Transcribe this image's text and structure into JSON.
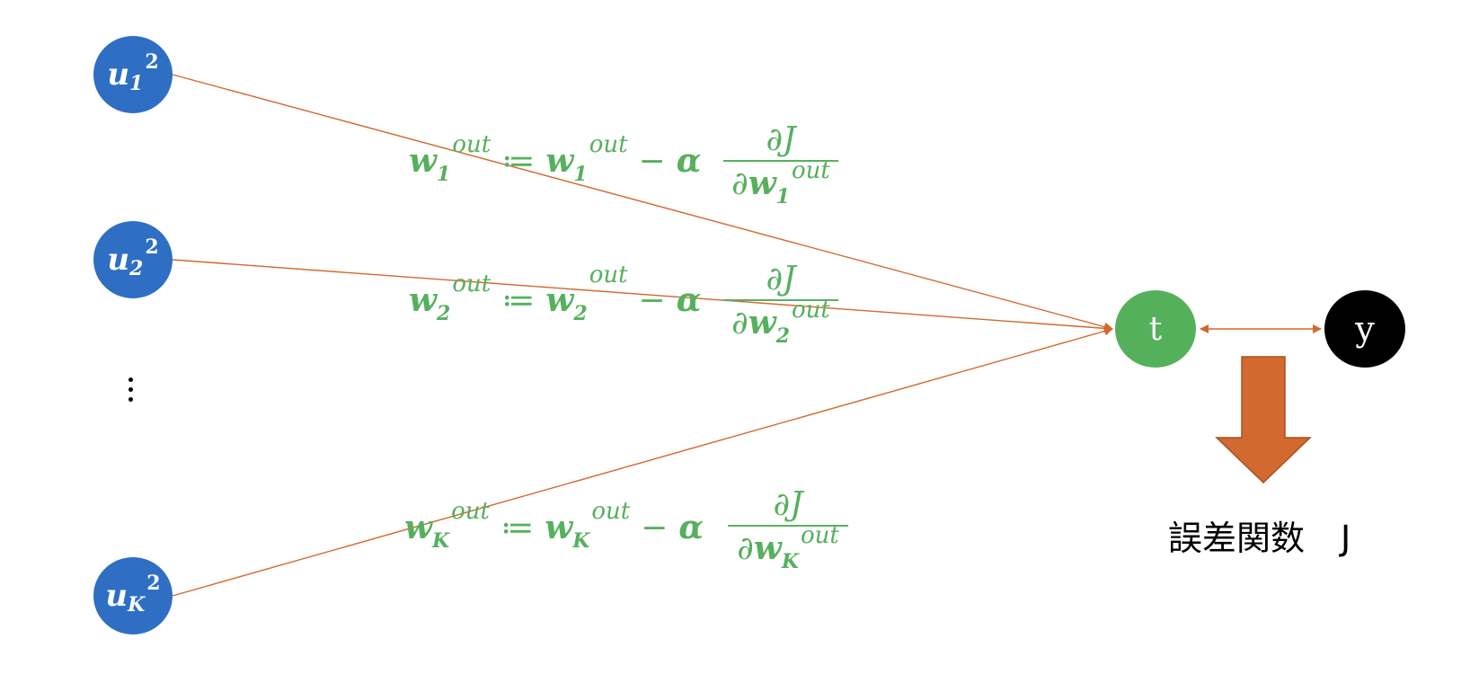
{
  "nodes": {
    "u1": {
      "base": "u",
      "sub": "1",
      "sup": "2"
    },
    "u2": {
      "base": "u",
      "sub": "2",
      "sup": "2"
    },
    "uK": {
      "base": "u",
      "sub": "K",
      "sup": "2"
    },
    "t": "t",
    "y": "y"
  },
  "equations": [
    {
      "w": "w",
      "sub": "1",
      "sup": "out",
      "assign": "≔",
      "minus": "−",
      "alpha": "α",
      "numerator": "∂J",
      "den_partial": "∂",
      "den_w": "w",
      "den_sub": "1",
      "den_sup": "out"
    },
    {
      "w": "w",
      "sub": "2",
      "sup": "out",
      "assign": "≔",
      "minus": "−",
      "alpha": "α",
      "numerator": "∂J",
      "den_partial": "∂",
      "den_w": "w",
      "den_sub": "2",
      "den_sup": "out"
    },
    {
      "w": "w",
      "sub": "K",
      "sup": "out",
      "assign": "≔",
      "minus": "−",
      "alpha": "α",
      "numerator": "∂J",
      "den_partial": "∂",
      "den_w": "w",
      "den_sub": "K",
      "den_sup": "out"
    }
  ],
  "error_function": {
    "label": "誤差関数",
    "symbol": "J"
  },
  "colors": {
    "input_node": "#2e6fc4",
    "target_node": "#55b05c",
    "output_node": "#000000",
    "edge": "#d2692e",
    "equation": "#56b05d",
    "arrow": "#d2692e"
  }
}
